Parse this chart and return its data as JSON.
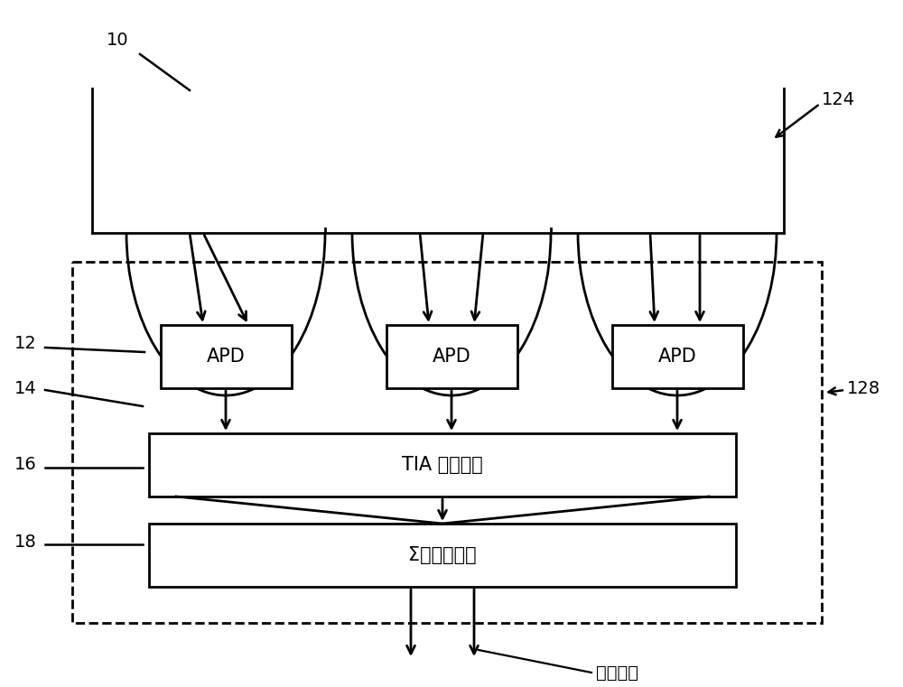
{
  "fig_width": 10.0,
  "fig_height": 7.61,
  "dpi": 100,
  "bg_color": "#ffffff",
  "line_color": "#000000",
  "line_width": 2.0,
  "label_10": "10",
  "label_124": "124",
  "label_128": "128",
  "label_12": "12",
  "label_14": "14",
  "label_16": "16",
  "label_18": "18",
  "label_apd": "APD",
  "label_tia": "TIA 队列组件",
  "label_sigma": "Σ放大器组件",
  "label_output": "差分输出",
  "font_size_box": 15,
  "font_size_numbers": 14
}
